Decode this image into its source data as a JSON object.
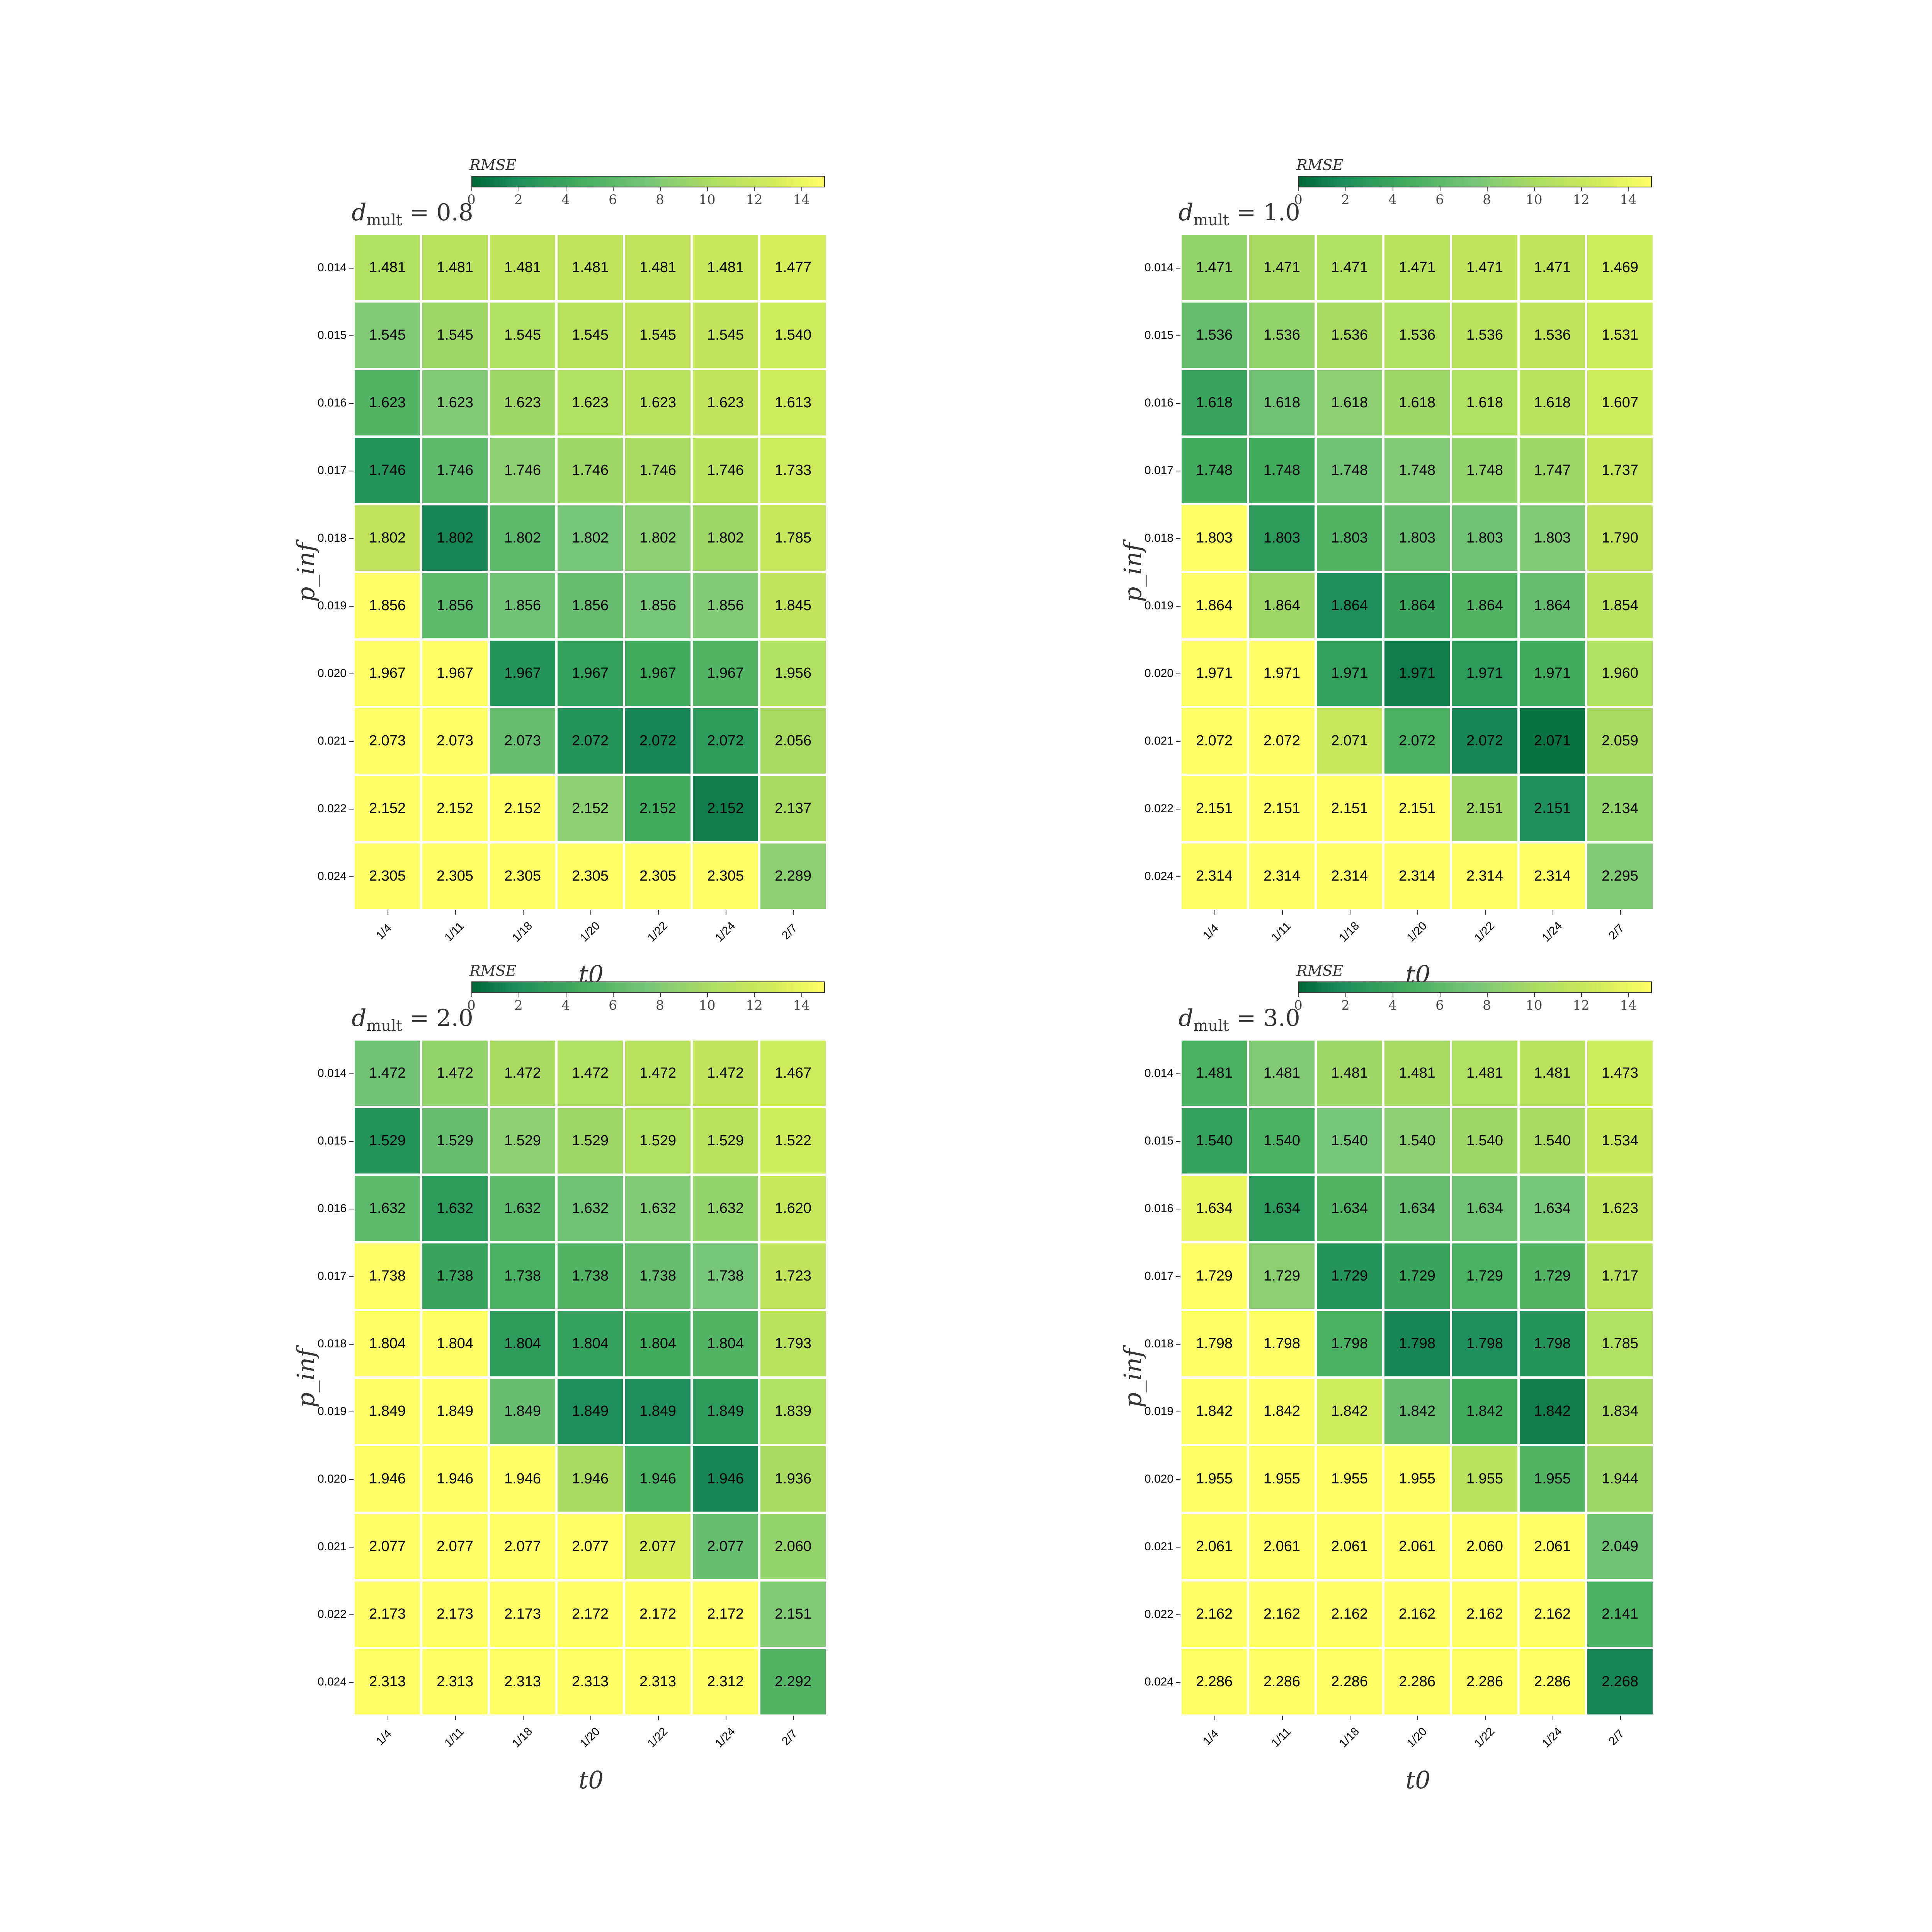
{
  "chart_data": [
    {
      "type": "heatmap",
      "title": "d_mult = 0.8",
      "title_base": "d",
      "title_sub": "mult",
      "title_rest": " = 0.8",
      "xlabel": "t0",
      "ylabel": "p_inf",
      "colorbar_label": "RMSE",
      "colorbar_ticks": [
        "0",
        "2",
        "4",
        "6",
        "8",
        "10",
        "12",
        "14"
      ],
      "colorbar_range": [
        0,
        15
      ],
      "x_categories": [
        "1/4",
        "1/11",
        "1/18",
        "1/20",
        "1/22",
        "1/24",
        "2/7"
      ],
      "y_categories": [
        "0.014",
        "0.015",
        "0.016",
        "0.017",
        "0.018",
        "0.019",
        "0.020",
        "0.021",
        "0.022",
        "0.024"
      ],
      "values": [
        [
          "1.481",
          "1.481",
          "1.481",
          "1.481",
          "1.481",
          "1.481",
          "1.477"
        ],
        [
          "1.545",
          "1.545",
          "1.545",
          "1.545",
          "1.545",
          "1.545",
          "1.540"
        ],
        [
          "1.623",
          "1.623",
          "1.623",
          "1.623",
          "1.623",
          "1.623",
          "1.613"
        ],
        [
          "1.746",
          "1.746",
          "1.746",
          "1.746",
          "1.746",
          "1.746",
          "1.733"
        ],
        [
          "1.802",
          "1.802",
          "1.802",
          "1.802",
          "1.802",
          "1.802",
          "1.785"
        ],
        [
          "1.856",
          "1.856",
          "1.856",
          "1.856",
          "1.856",
          "1.856",
          "1.845"
        ],
        [
          "1.967",
          "1.967",
          "1.967",
          "1.967",
          "1.967",
          "1.967",
          "1.956"
        ],
        [
          "2.073",
          "2.073",
          "2.073",
          "2.072",
          "2.072",
          "2.072",
          "2.056"
        ],
        [
          "2.152",
          "2.152",
          "2.152",
          "2.152",
          "2.152",
          "2.152",
          "2.137"
        ],
        [
          "2.305",
          "2.305",
          "2.305",
          "2.305",
          "2.305",
          "2.305",
          "2.289"
        ]
      ],
      "rmse": [
        [
          10.5,
          11,
          11.5,
          11.5,
          11.5,
          12,
          13
        ],
        [
          8,
          9.5,
          10.5,
          11,
          11.5,
          11.5,
          12.5
        ],
        [
          5.5,
          8,
          9.5,
          10.5,
          11,
          11.5,
          12.5
        ],
        [
          2.5,
          6,
          8.5,
          9.5,
          10,
          11,
          12.5
        ],
        [
          11.5,
          1.5,
          6,
          7.5,
          8.5,
          9.5,
          12
        ],
        [
          15,
          6,
          7,
          6.5,
          7.5,
          8,
          11.5
        ],
        [
          15,
          15,
          2.5,
          3.5,
          4.5,
          5.5,
          10.5
        ],
        [
          15,
          15,
          6.5,
          2.5,
          1.5,
          3,
          10
        ],
        [
          15,
          15,
          15,
          8.5,
          4.5,
          1,
          10
        ],
        [
          15,
          15,
          15,
          15,
          15,
          15,
          8.5
        ]
      ]
    },
    {
      "type": "heatmap",
      "title": "d_mult = 1.0",
      "title_base": "d",
      "title_sub": "mult",
      "title_rest": " = 1.0",
      "xlabel": "t0",
      "ylabel": "p_inf",
      "colorbar_label": "RMSE",
      "colorbar_ticks": [
        "0",
        "2",
        "4",
        "6",
        "8",
        "10",
        "12",
        "14"
      ],
      "colorbar_range": [
        0,
        15
      ],
      "x_categories": [
        "1/4",
        "1/11",
        "1/18",
        "1/20",
        "1/22",
        "1/24",
        "2/7"
      ],
      "y_categories": [
        "0.014",
        "0.015",
        "0.016",
        "0.017",
        "0.018",
        "0.019",
        "0.020",
        "0.021",
        "0.022",
        "0.024"
      ],
      "values": [
        [
          "1.471",
          "1.471",
          "1.471",
          "1.471",
          "1.471",
          "1.471",
          "1.469"
        ],
        [
          "1.536",
          "1.536",
          "1.536",
          "1.536",
          "1.536",
          "1.536",
          "1.531"
        ],
        [
          "1.618",
          "1.618",
          "1.618",
          "1.618",
          "1.618",
          "1.618",
          "1.607"
        ],
        [
          "1.748",
          "1.748",
          "1.748",
          "1.748",
          "1.748",
          "1.747",
          "1.737"
        ],
        [
          "1.803",
          "1.803",
          "1.803",
          "1.803",
          "1.803",
          "1.803",
          "1.790"
        ],
        [
          "1.864",
          "1.864",
          "1.864",
          "1.864",
          "1.864",
          "1.864",
          "1.854"
        ],
        [
          "1.971",
          "1.971",
          "1.971",
          "1.971",
          "1.971",
          "1.971",
          "1.960"
        ],
        [
          "2.072",
          "2.072",
          "2.071",
          "2.072",
          "2.072",
          "2.071",
          "2.059"
        ],
        [
          "2.151",
          "2.151",
          "2.151",
          "2.151",
          "2.151",
          "2.151",
          "2.134"
        ],
        [
          "2.314",
          "2.314",
          "2.314",
          "2.314",
          "2.314",
          "2.314",
          "2.295"
        ]
      ],
      "rmse": [
        [
          9,
          10,
          10.5,
          11,
          11.5,
          11.5,
          12.5
        ],
        [
          6.5,
          9,
          10,
          10.5,
          11,
          11.5,
          12.5
        ],
        [
          4,
          7,
          8.5,
          9.5,
          10.5,
          11,
          12.5
        ],
        [
          4.5,
          4.5,
          7,
          8,
          9,
          9.5,
          12
        ],
        [
          15,
          3,
          5.5,
          6.5,
          7,
          8,
          11.5
        ],
        [
          15,
          9.5,
          2,
          4,
          5.5,
          6.5,
          11
        ],
        [
          15,
          15,
          3.5,
          1,
          3,
          4.5,
          10.5
        ],
        [
          15,
          15,
          12,
          5,
          1.5,
          0.5,
          10
        ],
        [
          15,
          15,
          15,
          15,
          9.5,
          2,
          9
        ],
        [
          15,
          15,
          15,
          15,
          15,
          15,
          8
        ]
      ]
    },
    {
      "type": "heatmap",
      "title": "d_mult = 2.0",
      "title_base": "d",
      "title_sub": "mult",
      "title_rest": " = 2.0",
      "xlabel": "t0",
      "ylabel": "p_inf",
      "colorbar_label": "RMSE",
      "colorbar_ticks": [
        "0",
        "2",
        "4",
        "6",
        "8",
        "10",
        "12",
        "14"
      ],
      "colorbar_range": [
        0,
        15
      ],
      "x_categories": [
        "1/4",
        "1/11",
        "1/18",
        "1/20",
        "1/22",
        "1/24",
        "2/7"
      ],
      "y_categories": [
        "0.014",
        "0.015",
        "0.016",
        "0.017",
        "0.018",
        "0.019",
        "0.020",
        "0.021",
        "0.022",
        "0.024"
      ],
      "values": [
        [
          "1.472",
          "1.472",
          "1.472",
          "1.472",
          "1.472",
          "1.472",
          "1.467"
        ],
        [
          "1.529",
          "1.529",
          "1.529",
          "1.529",
          "1.529",
          "1.529",
          "1.522"
        ],
        [
          "1.632",
          "1.632",
          "1.632",
          "1.632",
          "1.632",
          "1.632",
          "1.620"
        ],
        [
          "1.738",
          "1.738",
          "1.738",
          "1.738",
          "1.738",
          "1.738",
          "1.723"
        ],
        [
          "1.804",
          "1.804",
          "1.804",
          "1.804",
          "1.804",
          "1.804",
          "1.793"
        ],
        [
          "1.849",
          "1.849",
          "1.849",
          "1.849",
          "1.849",
          "1.849",
          "1.839"
        ],
        [
          "1.946",
          "1.946",
          "1.946",
          "1.946",
          "1.946",
          "1.946",
          "1.936"
        ],
        [
          "2.077",
          "2.077",
          "2.077",
          "2.077",
          "2.077",
          "2.077",
          "2.060"
        ],
        [
          "2.173",
          "2.173",
          "2.173",
          "2.172",
          "2.172",
          "2.172",
          "2.151"
        ],
        [
          "2.313",
          "2.313",
          "2.313",
          "2.313",
          "2.313",
          "2.312",
          "2.292"
        ]
      ],
      "rmse": [
        [
          7,
          9,
          10,
          10.5,
          11,
          11.5,
          12.5
        ],
        [
          2.5,
          6.5,
          8.5,
          9.5,
          10.5,
          11,
          12.5
        ],
        [
          6,
          3,
          6,
          7,
          8,
          9,
          12
        ],
        [
          15,
          4,
          5,
          5.5,
          6.5,
          7.5,
          11.5
        ],
        [
          15,
          15,
          3,
          3.5,
          4.5,
          5.5,
          11
        ],
        [
          15,
          15,
          6.5,
          2,
          2,
          3,
          10.5
        ],
        [
          15,
          15,
          15,
          10,
          5,
          1.5,
          10
        ],
        [
          15,
          15,
          15,
          15,
          13,
          6.5,
          9
        ],
        [
          15,
          15,
          15,
          15,
          15,
          15,
          8
        ],
        [
          15,
          15,
          15,
          15,
          15,
          15,
          5.5
        ]
      ]
    },
    {
      "type": "heatmap",
      "title": "d_mult = 3.0",
      "title_base": "d",
      "title_sub": "mult",
      "title_rest": " = 3.0",
      "xlabel": "t0",
      "ylabel": "p_inf",
      "colorbar_label": "RMSE",
      "colorbar_ticks": [
        "0",
        "2",
        "4",
        "6",
        "8",
        "10",
        "12",
        "14"
      ],
      "colorbar_range": [
        0,
        15
      ],
      "x_categories": [
        "1/4",
        "1/11",
        "1/18",
        "1/20",
        "1/22",
        "1/24",
        "2/7"
      ],
      "y_categories": [
        "0.014",
        "0.015",
        "0.016",
        "0.017",
        "0.018",
        "0.019",
        "0.020",
        "0.021",
        "0.022",
        "0.024"
      ],
      "values": [
        [
          "1.481",
          "1.481",
          "1.481",
          "1.481",
          "1.481",
          "1.481",
          "1.473"
        ],
        [
          "1.540",
          "1.540",
          "1.540",
          "1.540",
          "1.540",
          "1.540",
          "1.534"
        ],
        [
          "1.634",
          "1.634",
          "1.634",
          "1.634",
          "1.634",
          "1.634",
          "1.623"
        ],
        [
          "1.729",
          "1.729",
          "1.729",
          "1.729",
          "1.729",
          "1.729",
          "1.717"
        ],
        [
          "1.798",
          "1.798",
          "1.798",
          "1.798",
          "1.798",
          "1.798",
          "1.785"
        ],
        [
          "1.842",
          "1.842",
          "1.842",
          "1.842",
          "1.842",
          "1.842",
          "1.834"
        ],
        [
          "1.955",
          "1.955",
          "1.955",
          "1.955",
          "1.955",
          "1.955",
          "1.944"
        ],
        [
          "2.061",
          "2.061",
          "2.061",
          "2.061",
          "2.060",
          "2.061",
          "2.049"
        ],
        [
          "2.162",
          "2.162",
          "2.162",
          "2.162",
          "2.162",
          "2.162",
          "2.141"
        ],
        [
          "2.286",
          "2.286",
          "2.286",
          "2.286",
          "2.286",
          "2.286",
          "2.268"
        ]
      ],
      "rmse": [
        [
          5,
          8,
          9.5,
          10,
          10.5,
          11,
          12.5
        ],
        [
          3.5,
          5,
          7.5,
          8.5,
          9.5,
          10,
          12
        ],
        [
          14,
          3,
          5.5,
          6.5,
          7,
          7.5,
          11.5
        ],
        [
          15,
          8.5,
          2.5,
          4,
          5,
          5.5,
          11
        ],
        [
          15,
          15,
          5,
          1.5,
          2,
          2.5,
          10.5
        ],
        [
          15,
          15,
          12.5,
          6.5,
          4.5,
          1,
          10
        ],
        [
          15,
          15,
          15,
          15,
          11,
          5.5,
          9.5
        ],
        [
          15,
          15,
          15,
          15,
          15,
          15,
          7
        ],
        [
          15,
          15,
          15,
          15,
          15,
          15,
          5
        ],
        [
          15,
          15,
          15,
          15,
          15,
          15,
          1.5
        ]
      ]
    }
  ]
}
